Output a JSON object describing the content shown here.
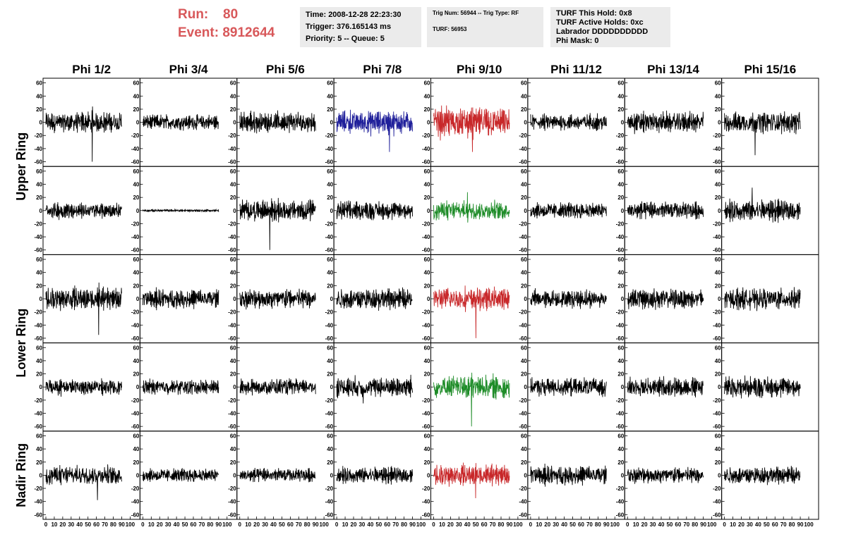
{
  "header": {
    "run_label": "Run:",
    "run_value": "80",
    "event_label": "Event:",
    "event_value": "8912644",
    "accent_color": "#d8585a"
  },
  "info_panels": {
    "time_line": "Time: 2008-12-28 22:23:30",
    "trigger_line": "Trigger: 376.165143 ms",
    "priority_line": "Priority: 5 -- Queue: 5",
    "trig_num_line": "Trig Num: 56944 -- Trig Type: RF",
    "turf_line": "TURF: 56953",
    "turf_hold_line": "TURF This Hold: 0x8",
    "turf_active_line": "TURF Active Holds: 0xc",
    "labrador_line": "Labrador DDDDDDDDDD",
    "phi_mask_line": "Phi Mask: 0"
  },
  "chart_data": {
    "type": "line",
    "columns": [
      "Phi 1/2",
      "Phi 3/4",
      "Phi 5/6",
      "Phi 7/8",
      "Phi 9/10",
      "Phi 11/12",
      "Phi 13/14",
      "Phi 15/16"
    ],
    "rows": [
      {
        "label": "Upper Ring",
        "group": "Upper Ring"
      },
      {
        "label": "",
        "group": "Upper Ring"
      },
      {
        "label": "Lower Ring",
        "group": "Lower Ring"
      },
      {
        "label": "",
        "group": "Lower Ring"
      },
      {
        "label": "Nadir Ring",
        "group": "Nadir Ring"
      }
    ],
    "xlim": [
      0,
      100
    ],
    "ylim": [
      -65,
      65
    ],
    "y_ticks": [
      -60,
      -40,
      -20,
      0,
      20,
      40,
      60
    ],
    "x_ticks": [
      0,
      10,
      20,
      30,
      40,
      50,
      60,
      70,
      80,
      90,
      100
    ],
    "colors": {
      "default": "#000000",
      "blue": "#1f1f9a",
      "red": "#c8282a",
      "green": "#1e8c28"
    },
    "cells": [
      [
        {
          "color": "default",
          "amp": 16,
          "spike": -60
        },
        {
          "color": "default",
          "amp": 12,
          "spike": 0
        },
        {
          "color": "default",
          "amp": 17,
          "spike": 0
        },
        {
          "color": "blue",
          "amp": 18,
          "spike": -45
        },
        {
          "color": "red",
          "amp": 24,
          "spike": -45
        },
        {
          "color": "default",
          "amp": 13,
          "spike": 0
        },
        {
          "color": "default",
          "amp": 16,
          "spike": 0
        },
        {
          "color": "default",
          "amp": 17,
          "spike": -50
        }
      ],
      [
        {
          "color": "default",
          "amp": 13,
          "spike": 0
        },
        {
          "color": "default",
          "amp": 2,
          "spike": 0
        },
        {
          "color": "default",
          "amp": 17,
          "spike": -60
        },
        {
          "color": "default",
          "amp": 15,
          "spike": 0
        },
        {
          "color": "green",
          "amp": 15,
          "spike": 28
        },
        {
          "color": "default",
          "amp": 13,
          "spike": 0
        },
        {
          "color": "default",
          "amp": 14,
          "spike": 0
        },
        {
          "color": "default",
          "amp": 17,
          "spike": 35
        }
      ],
      [
        {
          "color": "default",
          "amp": 18,
          "spike": -55
        },
        {
          "color": "default",
          "amp": 15,
          "spike": 0
        },
        {
          "color": "default",
          "amp": 16,
          "spike": 0
        },
        {
          "color": "default",
          "amp": 17,
          "spike": 0
        },
        {
          "color": "red",
          "amp": 18,
          "spike": -60
        },
        {
          "color": "default",
          "amp": 14,
          "spike": 0
        },
        {
          "color": "default",
          "amp": 16,
          "spike": 0
        },
        {
          "color": "default",
          "amp": 16,
          "spike": 0
        }
      ],
      [
        {
          "color": "default",
          "amp": 12,
          "spike": 0
        },
        {
          "color": "default",
          "amp": 12,
          "spike": 0
        },
        {
          "color": "default",
          "amp": 13,
          "spike": 0
        },
        {
          "color": "default",
          "amp": 16,
          "spike": -25
        },
        {
          "color": "green",
          "amp": 18,
          "spike": -60
        },
        {
          "color": "default",
          "amp": 14,
          "spike": 0
        },
        {
          "color": "default",
          "amp": 15,
          "spike": 0
        },
        {
          "color": "default",
          "amp": 17,
          "spike": 0
        }
      ],
      [
        {
          "color": "default",
          "amp": 15,
          "spike": -38
        },
        {
          "color": "default",
          "amp": 11,
          "spike": 0
        },
        {
          "color": "default",
          "amp": 11,
          "spike": 0
        },
        {
          "color": "default",
          "amp": 13,
          "spike": 0
        },
        {
          "color": "red",
          "amp": 17,
          "spike": -35
        },
        {
          "color": "default",
          "amp": 15,
          "spike": 0
        },
        {
          "color": "default",
          "amp": 13,
          "spike": 0
        },
        {
          "color": "default",
          "amp": 14,
          "spike": 0
        }
      ]
    ]
  }
}
